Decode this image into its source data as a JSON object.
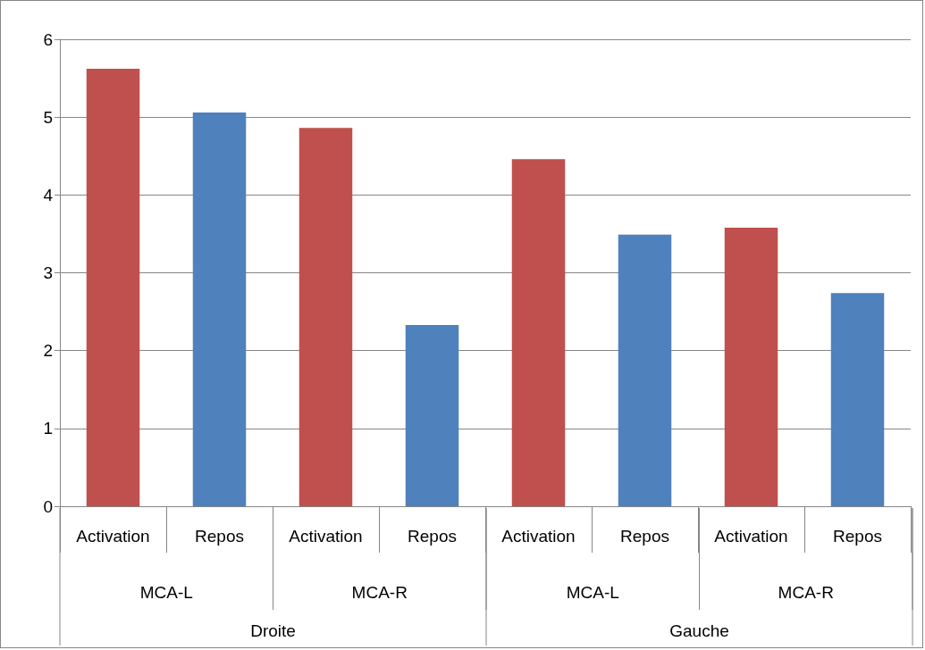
{
  "chart_data": {
    "type": "bar",
    "categories": [
      "Activation",
      "Repos",
      "Activation",
      "Repos",
      "Activation",
      "Repos",
      "Activation",
      "Repos"
    ],
    "values": [
      5.62,
      5.06,
      4.86,
      2.33,
      4.46,
      3.49,
      3.58,
      2.74
    ],
    "colors": [
      "#c0504d",
      "#4f81bd",
      "#c0504d",
      "#4f81bd",
      "#c0504d",
      "#4f81bd",
      "#c0504d",
      "#4f81bd"
    ],
    "ylim": [
      0,
      6
    ],
    "yticks": [
      0,
      1,
      2,
      3,
      4,
      5,
      6
    ],
    "grid": "y",
    "annotations": [
      "MCA-L",
      "MCA-R",
      "MCA-L",
      "MCA-R",
      "Droite",
      "Gauche"
    ]
  }
}
